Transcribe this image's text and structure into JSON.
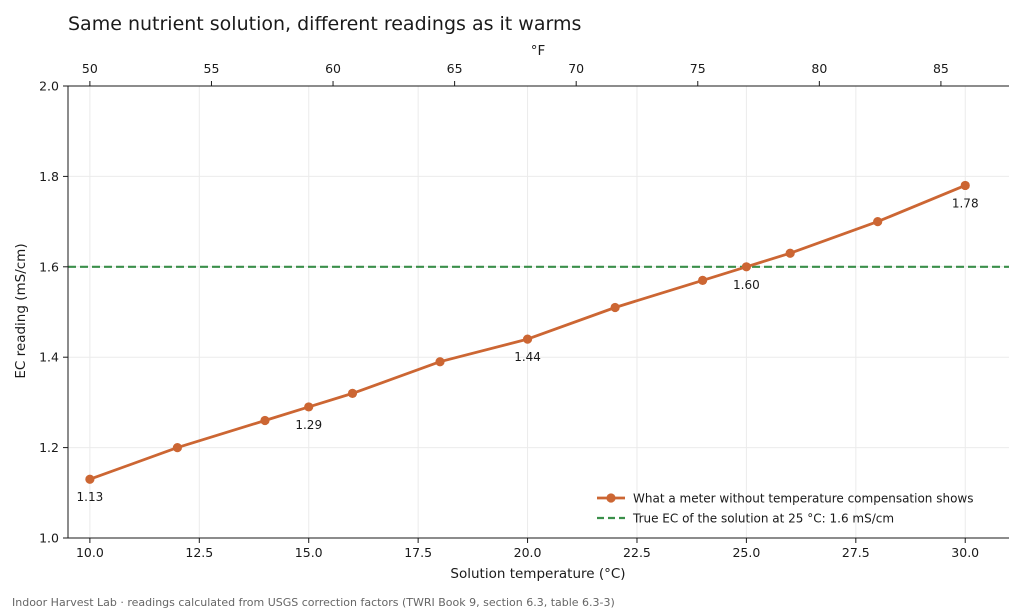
{
  "chart_data": {
    "type": "line",
    "title": "Same nutrient solution, different readings as it warms",
    "xlabel": "Solution temperature (°C)",
    "ylabel": "EC reading (mS/cm)",
    "x2label": "°F",
    "xlim": [
      9.5,
      31.0
    ],
    "ylim": [
      1.0,
      2.0
    ],
    "x_ticks": [
      "10.0",
      "12.5",
      "15.0",
      "17.5",
      "20.0",
      "22.5",
      "25.0",
      "27.5",
      "30.0"
    ],
    "y_ticks": [
      "1.0",
      "1.2",
      "1.4",
      "1.6",
      "1.8",
      "2.0"
    ],
    "x2_ticks": [
      "50",
      "55",
      "60",
      "65",
      "70",
      "75",
      "80",
      "85"
    ],
    "grid": true,
    "legend_position": "lower-right",
    "series": [
      {
        "name": "What a meter without temperature compensation shows",
        "color": "#cc6633",
        "x": [
          10,
          12,
          14,
          15,
          16,
          18,
          20,
          22,
          24,
          25,
          26,
          28,
          30
        ],
        "y": [
          1.13,
          1.2,
          1.26,
          1.29,
          1.32,
          1.39,
          1.44,
          1.51,
          1.57,
          1.6,
          1.63,
          1.7,
          1.78
        ]
      }
    ],
    "reference_line": {
      "name": "True EC of the solution at 25 °C: 1.6 mS/cm",
      "y": 1.6,
      "color": "#3a8f4a"
    },
    "annotations": [
      {
        "x": 10,
        "y": 1.13,
        "text": "1.13"
      },
      {
        "x": 15,
        "y": 1.29,
        "text": "1.29"
      },
      {
        "x": 20,
        "y": 1.44,
        "text": "1.44"
      },
      {
        "x": 25,
        "y": 1.6,
        "text": "1.60"
      },
      {
        "x": 30,
        "y": 1.78,
        "text": "1.78"
      }
    ]
  },
  "footer": {
    "source": "Indoor Harvest Lab · readings calculated from USGS correction factors (TWRI Book 9, section 6.3, table 6.3-3)"
  }
}
